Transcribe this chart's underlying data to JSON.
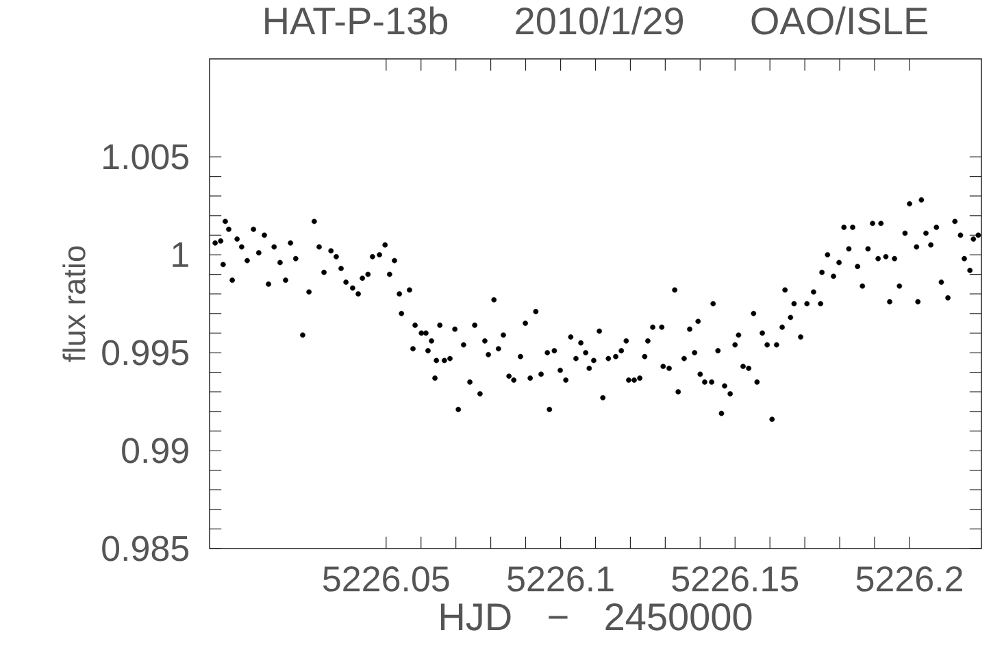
{
  "chart_data": {
    "type": "scatter",
    "title": "HAT-P-13b 2010/1/29 OAO/ISLE",
    "xlabel": "HJD − 2450000",
    "ylabel": "flux ratio",
    "color": "#000000",
    "marker": "circle",
    "xlim": [
      5225.9994,
      5226.2206
    ],
    "ylim": [
      0.985,
      1.01
    ],
    "xticks": [
      5226.05,
      5226.1,
      5226.15,
      5226.2
    ],
    "yticks": [
      0.985,
      0.99,
      0.995,
      1,
      1.005
    ],
    "x": [
      5226.001,
      5226.0026,
      5226.0039,
      5226.0049,
      5226.0033,
      5226.0059,
      5226.0073,
      5226.0086,
      5226.0102,
      5226.012,
      5226.0135,
      5226.0151,
      5226.0163,
      5226.0179,
      5226.0196,
      5226.0212,
      5226.0226,
      5226.0241,
      5226.0261,
      5226.0279,
      5226.0294,
      5226.0308,
      5226.0322,
      5226.0342,
      5226.0357,
      5226.0371,
      5226.0385,
      5226.0404,
      5226.042,
      5226.0432,
      5226.0448,
      5226.0461,
      5226.0481,
      5226.0497,
      5226.051,
      5226.0524,
      5226.0538,
      5226.0544,
      5226.0567,
      5226.0583,
      5226.0601,
      5226.0614,
      5226.063,
      5226.0577,
      5226.062,
      5226.0644,
      5226.064,
      5226.0654,
      5226.0667,
      5226.0683,
      5226.0697,
      5226.0707,
      5226.0722,
      5226.074,
      5226.0754,
      5226.0769,
      5226.0783,
      5226.0793,
      5226.0809,
      5226.0822,
      5226.0836,
      5226.0852,
      5226.0866,
      5226.0885,
      5226.0899,
      5226.0913,
      5226.0929,
      5226.0944,
      5226.0962,
      5226.0968,
      5226.0982,
      5226.0999,
      5226.1015,
      5226.1029,
      5226.1044,
      5226.1058,
      5226.1072,
      5226.1082,
      5226.1095,
      5226.1111,
      5226.1121,
      5226.1137,
      5226.1158,
      5226.1174,
      5226.1188,
      5226.1195,
      5226.1211,
      5226.1227,
      5226.1241,
      5226.125,
      5226.1264,
      5226.129,
      5226.1294,
      5226.1311,
      5226.1327,
      5226.1337,
      5226.1354,
      5226.137,
      5226.1384,
      5226.1394,
      5226.14,
      5226.1413,
      5226.1433,
      5226.1437,
      5226.1451,
      5226.1461,
      5226.147,
      5226.1486,
      5226.15,
      5226.151,
      5226.1523,
      5226.1539,
      5226.1553,
      5226.1563,
      5226.1578,
      5226.1592,
      5226.1606,
      5226.1619,
      5226.1635,
      5226.1643,
      5226.1659,
      5226.1669,
      5226.1688,
      5226.1706,
      5226.1725,
      5226.1745,
      5226.1749,
      5226.1765,
      5226.1782,
      5226.1798,
      5226.1812,
      5226.1826,
      5226.1837,
      5226.1851,
      5226.1865,
      5226.1881,
      5226.1894,
      5226.191,
      5226.1918,
      5226.1932,
      5226.1943,
      5226.1957,
      5226.1971,
      5226.1987,
      5226.2,
      5226.202,
      5226.2024,
      5226.2034,
      5226.2047,
      5226.2061,
      5226.2077,
      5226.2091,
      5226.211,
      5226.213,
      5226.2146,
      5226.2157,
      5226.2173,
      5226.2183,
      5226.2197
    ],
    "values": [
      1.0006,
      1.0007,
      1.0017,
      1.0013,
      0.9995,
      0.9987,
      1.0008,
      1.0004,
      0.9997,
      1.0013,
      1.0001,
      1.001,
      0.9985,
      1.0004,
      0.9996,
      0.9987,
      1.0006,
      0.9998,
      0.9959,
      0.9981,
      1.0017,
      1.0004,
      0.9991,
      1.0002,
      0.9999,
      0.9993,
      0.9986,
      0.9983,
      0.998,
      0.9988,
      0.999,
      0.9999,
      1.0,
      1.0005,
      0.999,
      0.9997,
      0.998,
      0.997,
      0.9982,
      0.9964,
      0.996,
      0.996,
      0.9956,
      0.9952,
      0.9951,
      0.9946,
      0.9937,
      0.9964,
      0.9946,
      0.9947,
      0.9962,
      0.9921,
      0.9954,
      0.9935,
      0.9964,
      0.9929,
      0.9956,
      0.9949,
      0.9977,
      0.9952,
      0.9959,
      0.9938,
      0.9936,
      0.9948,
      0.9965,
      0.9937,
      0.9971,
      0.9939,
      0.995,
      0.9921,
      0.9951,
      0.9941,
      0.9936,
      0.9958,
      0.9947,
      0.9955,
      0.995,
      0.9942,
      0.9946,
      0.9961,
      0.9927,
      0.9947,
      0.9948,
      0.9951,
      0.9956,
      0.9936,
      0.9936,
      0.9937,
      0.9948,
      0.9956,
      0.9963,
      0.9963,
      0.9943,
      0.9942,
      0.9982,
      0.993,
      0.9947,
      0.9962,
      0.995,
      0.9966,
      0.9939,
      0.9935,
      0.9935,
      0.9975,
      0.9951,
      0.9919,
      0.9933,
      0.9929,
      0.9954,
      0.9959,
      0.9943,
      0.9942,
      0.997,
      0.9935,
      0.996,
      0.9954,
      0.9916,
      0.9954,
      0.9963,
      0.9982,
      0.9968,
      0.9975,
      0.9958,
      0.9975,
      0.9981,
      0.9975,
      0.9991,
      1.0,
      0.9989,
      0.9996,
      1.0014,
      1.0003,
      1.0014,
      0.9994,
      0.9984,
      1.0003,
      1.0016,
      0.9998,
      1.0016,
      0.9999,
      0.9976,
      0.9998,
      0.9984,
      1.0011,
      1.0026,
      1.0004,
      0.9976,
      1.0028,
      1.0011,
      1.0005,
      1.0014,
      0.9986,
      0.9978,
      1.0017,
      1.001,
      0.9998,
      0.9992,
      1.0008,
      1.001
    ]
  }
}
